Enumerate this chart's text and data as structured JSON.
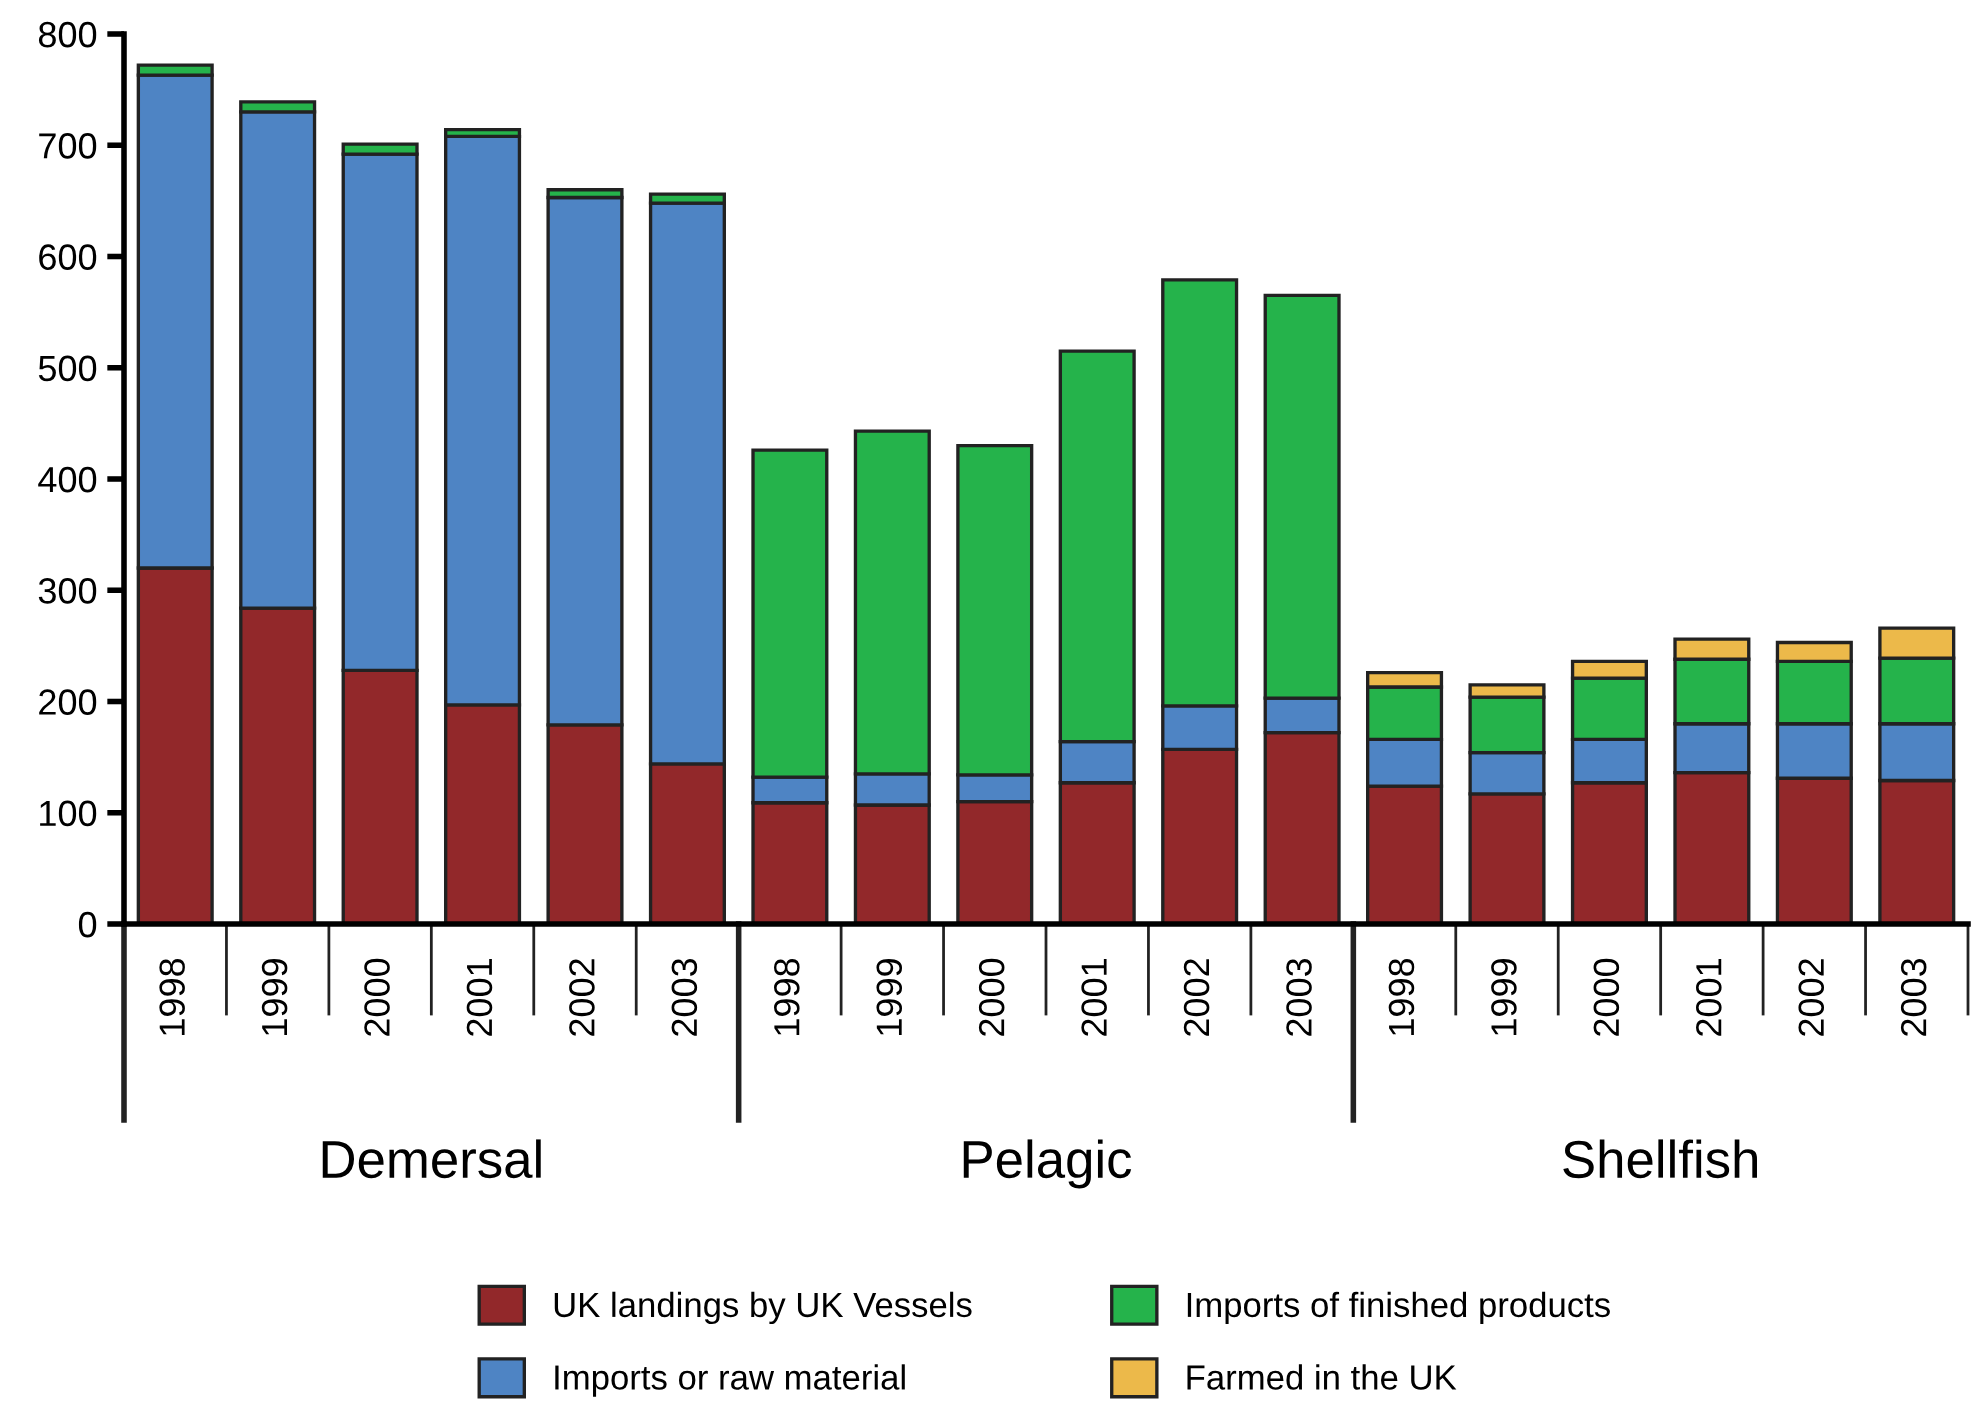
{
  "chart_data": {
    "type": "bar",
    "stacked": true,
    "categories": [
      "1998",
      "1999",
      "2000",
      "2001",
      "2002",
      "2003",
      "1998",
      "1999",
      "2000",
      "2001",
      "2002",
      "2003",
      "1998",
      "1999",
      "2000",
      "2001",
      "2002",
      "2003"
    ],
    "annotations": [
      "Demersal",
      "Pelagic",
      "Shellfish"
    ],
    "series": [
      {
        "name": "UK landings by UK Vessels",
        "color": "#92282a",
        "values": [
          320,
          284,
          228,
          197,
          179,
          144,
          109,
          107,
          110,
          127,
          157,
          172,
          124,
          117,
          127,
          136,
          131,
          129
        ]
      },
      {
        "name": "Imports or raw material",
        "color": "#4e84c4",
        "values": [
          443,
          446,
          464,
          511,
          474,
          504,
          23,
          28,
          24,
          37,
          39,
          31,
          42,
          37,
          39,
          44,
          49,
          51
        ]
      },
      {
        "name": "Imports of finished products",
        "color": "#25b34b",
        "values": [
          9,
          9,
          9,
          6,
          7,
          8,
          294,
          308,
          296,
          351,
          383,
          362,
          47,
          50,
          55,
          58,
          56,
          59
        ]
      },
      {
        "name": "Farmed in the UK",
        "color": "#ecb94a",
        "values": [
          null,
          null,
          null,
          null,
          null,
          null,
          null,
          null,
          null,
          null,
          null,
          null,
          13,
          11,
          15,
          18,
          17,
          27
        ]
      }
    ],
    "ylim": [
      0,
      800
    ],
    "yticks": [
      0,
      100,
      200,
      300,
      400,
      500,
      600,
      700,
      800
    ],
    "grid": false,
    "legend": "bottom"
  }
}
